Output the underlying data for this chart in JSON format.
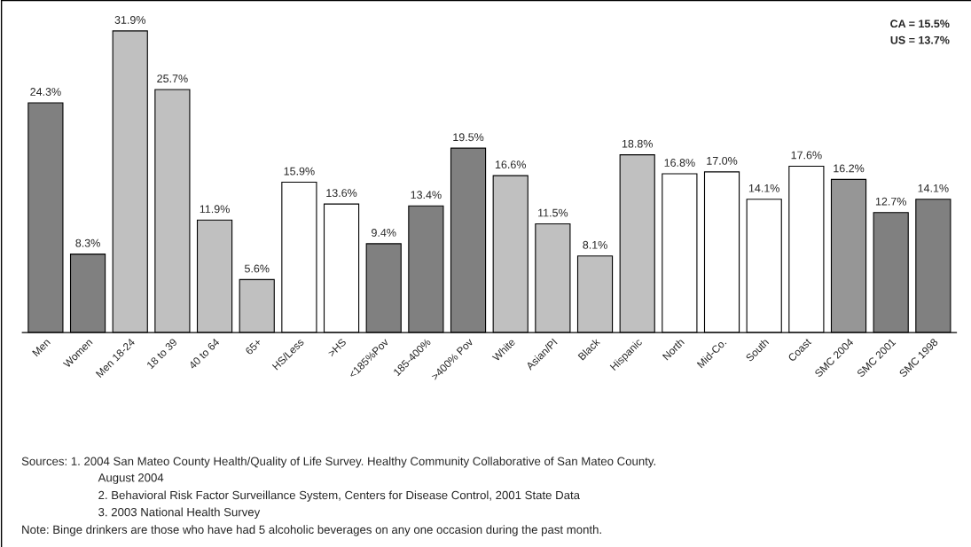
{
  "chart_data": {
    "type": "bar",
    "categories": [
      "Men",
      "Women",
      "Men 18-24",
      "18 to 39",
      "40 to 64",
      "65+",
      "HS/Less",
      ">HS",
      "<185%Pov",
      "185-400%",
      ">400% Pov",
      "White",
      "Asian/PI",
      "Black",
      "Hispanic",
      "North",
      "Mid-Co.",
      "South",
      "Coast",
      "SMC 2004",
      "SMC 2001",
      "SMC 1998"
    ],
    "values": [
      24.3,
      8.3,
      31.9,
      25.7,
      11.9,
      5.6,
      15.9,
      13.6,
      9.4,
      13.4,
      19.5,
      16.6,
      11.5,
      8.1,
      18.8,
      16.8,
      17.0,
      14.1,
      17.6,
      16.2,
      12.7,
      14.1
    ],
    "colors": [
      "#808080",
      "#808080",
      "#c0c0c0",
      "#c0c0c0",
      "#c0c0c0",
      "#c0c0c0",
      "#ffffff",
      "#ffffff",
      "#808080",
      "#808080",
      "#808080",
      "#c0c0c0",
      "#c0c0c0",
      "#c0c0c0",
      "#c0c0c0",
      "#ffffff",
      "#ffffff",
      "#ffffff",
      "#ffffff",
      "#969696",
      "#808080",
      "#808080"
    ],
    "value_labels": [
      "24.3%",
      "8.3%",
      "31.9%",
      "25.7%",
      "11.9%",
      "5.6%",
      "15.9%",
      "13.6%",
      "9.4%",
      "13.4%",
      "19.5%",
      "16.6%",
      "11.5%",
      "8.1%",
      "18.8%",
      "16.8%",
      "17.0%",
      "14.1%",
      "17.6%",
      "16.2%",
      "12.7%",
      "14.1%"
    ],
    "annotations": [
      "CA = 15.5%",
      "US = 13.7%",
      "Sources: 1. 2004 San Mateo County Health/Quality of Life Survey. Healthy Community Collaborative of San Mateo County.",
      "August 2004",
      "2. Behavioral Risk Factor Surveillance System, Centers for Disease Control, 2001 State Data",
      "3. 2003 National Health Survey",
      "Note: Binge drinkers are those who have had 5 alcoholic beverages on any one occasion during the past month."
    ],
    "grid": false,
    "legend": false
  }
}
